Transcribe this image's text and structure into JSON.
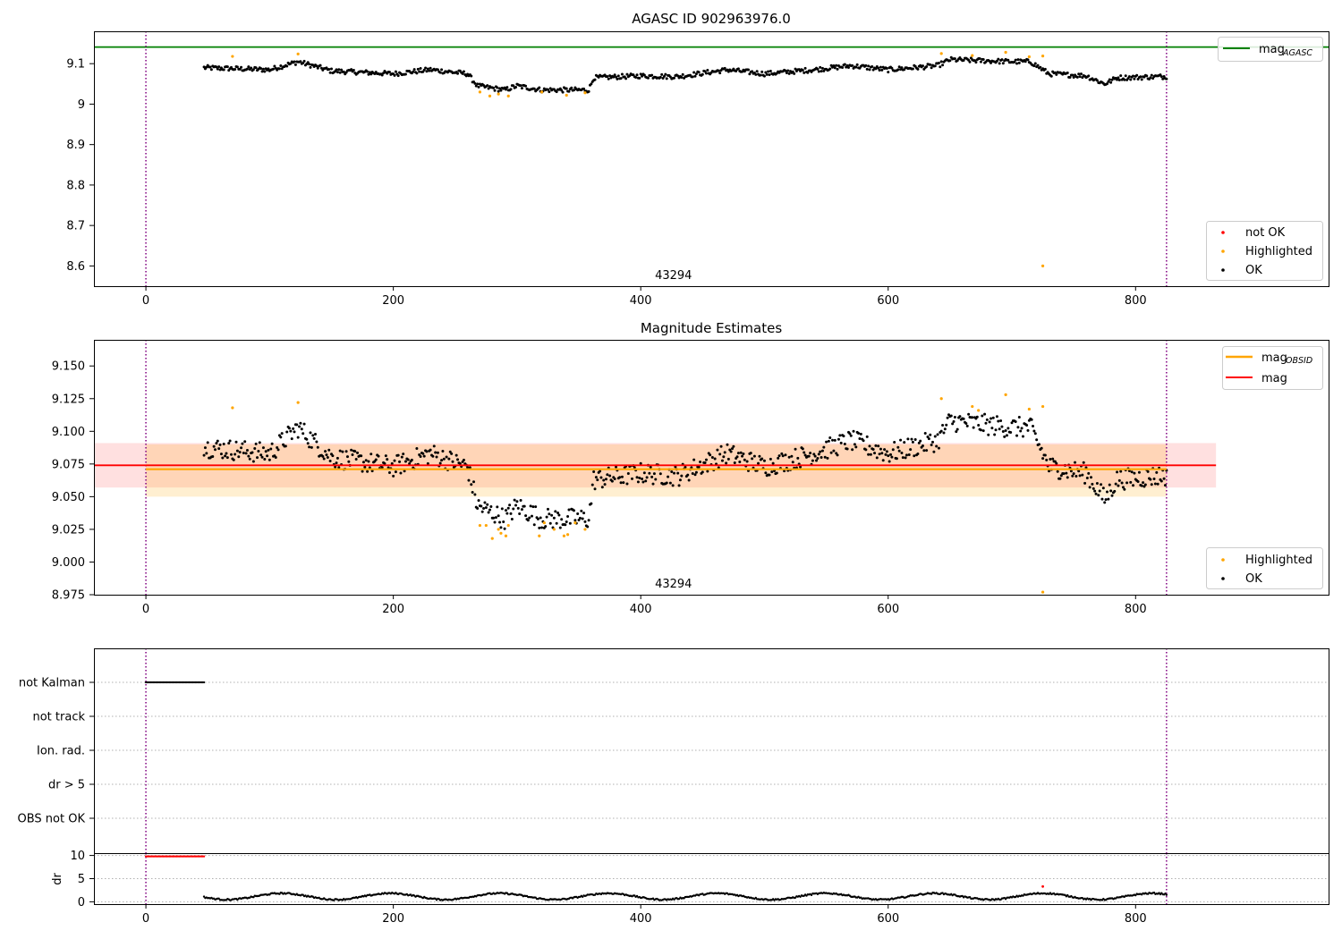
{
  "chart_data": [
    {
      "type": "scatter",
      "title": "AGASC ID 902963976.0",
      "xlim": [
        -42,
        956
      ],
      "ylim": [
        8.55,
        9.18
      ],
      "xticks": [
        0,
        200,
        400,
        600,
        800
      ],
      "yticks": [
        8.6,
        8.7,
        8.8,
        8.9,
        9.0,
        9.1
      ],
      "grid": false,
      "reference_line": {
        "label": "mag",
        "subscript": "AGASC",
        "y": 9.141,
        "color": "#008000"
      },
      "obsid_boundaries": [
        0,
        825
      ],
      "obsid_label": {
        "text": "43294",
        "x": 412
      },
      "series": [
        {
          "name": "not OK",
          "color": "#ff0000",
          "points": []
        },
        {
          "name": "Highlighted",
          "color": "#ffa500",
          "points": [
            [
              70,
              9.118
            ],
            [
              123,
              9.124
            ],
            [
              270,
              9.03
            ],
            [
              278,
              9.02
            ],
            [
              285,
              9.025
            ],
            [
              293,
              9.02
            ],
            [
              320,
              9.03
            ],
            [
              340,
              9.022
            ],
            [
              355,
              9.028
            ],
            [
              643,
              9.125
            ],
            [
              668,
              9.12
            ],
            [
              695,
              9.128
            ],
            [
              714,
              9.117
            ],
            [
              725,
              9.119
            ],
            [
              725,
              8.6
            ]
          ]
        },
        {
          "name": "OK",
          "color": "#000000",
          "generated_from": "trend",
          "x_range": [
            47,
            825
          ],
          "step": 1,
          "jitter": 0.006
        }
      ],
      "trend": [
        [
          47,
          9.09
        ],
        [
          100,
          9.085
        ],
        [
          123,
          9.105
        ],
        [
          150,
          9.082
        ],
        [
          200,
          9.075
        ],
        [
          230,
          9.085
        ],
        [
          260,
          9.075
        ],
        [
          268,
          9.045
        ],
        [
          290,
          9.035
        ],
        [
          300,
          9.045
        ],
        [
          320,
          9.035
        ],
        [
          358,
          9.035
        ],
        [
          362,
          9.065
        ],
        [
          400,
          9.07
        ],
        [
          430,
          9.068
        ],
        [
          470,
          9.085
        ],
        [
          500,
          9.075
        ],
        [
          540,
          9.085
        ],
        [
          570,
          9.095
        ],
        [
          600,
          9.085
        ],
        [
          640,
          9.095
        ],
        [
          650,
          9.11
        ],
        [
          700,
          9.105
        ],
        [
          715,
          9.105
        ],
        [
          730,
          9.075
        ],
        [
          760,
          9.07
        ],
        [
          775,
          9.05
        ],
        [
          785,
          9.065
        ],
        [
          820,
          9.068
        ]
      ],
      "legend": {
        "placement": "lower-right",
        "entries": [
          "not OK",
          "Highlighted",
          "OK"
        ]
      },
      "legend_top": {
        "placement": "upper-right",
        "entries": [
          "mag"
        ]
      }
    },
    {
      "type": "scatter",
      "title": "Magnitude Estimates",
      "xlim": [
        -42,
        956
      ],
      "ylim": [
        8.975,
        9.17
      ],
      "xticks": [
        0,
        200,
        400,
        600,
        800
      ],
      "yticks": [
        8.975,
        9.0,
        9.025,
        9.05,
        9.075,
        9.1,
        9.125,
        9.15
      ],
      "ytick_labels": [
        "8.975",
        "9.000",
        "9.025",
        "9.050",
        "9.075",
        "9.100",
        "9.125",
        "9.150"
      ],
      "grid": false,
      "lines": [
        {
          "label": "mag",
          "subscript": "OBSID",
          "y": 9.071,
          "color": "#ffa500",
          "band": [
            9.05,
            9.09
          ],
          "x_range": [
            0,
            825
          ]
        },
        {
          "label": "mag",
          "y": 9.074,
          "color": "#ff0000",
          "band": [
            9.057,
            9.091
          ],
          "x_range": [
            -42,
            865
          ]
        }
      ],
      "obsid_boundaries": [
        0,
        825
      ],
      "obsid_label": {
        "text": "43294",
        "x": 412
      },
      "series": [
        {
          "name": "Highlighted",
          "color": "#ffa500",
          "points": [
            [
              70,
              9.118
            ],
            [
              123,
              9.122
            ],
            [
              270,
              9.028
            ],
            [
              275,
              9.028
            ],
            [
              280,
              9.018
            ],
            [
              285,
              9.025
            ],
            [
              287,
              9.022
            ],
            [
              291,
              9.02
            ],
            [
              293,
              9.028
            ],
            [
              318,
              9.02
            ],
            [
              322,
              9.03
            ],
            [
              330,
              9.025
            ],
            [
              338,
              9.02
            ],
            [
              341,
              9.021
            ],
            [
              347,
              9.03
            ],
            [
              355,
              9.025
            ],
            [
              643,
              9.125
            ],
            [
              668,
              9.119
            ],
            [
              673,
              9.116
            ],
            [
              695,
              9.128
            ],
            [
              714,
              9.117
            ],
            [
              725,
              9.119
            ],
            [
              725,
              8.977
            ]
          ]
        },
        {
          "name": "OK",
          "color": "#000000",
          "generated_from": "trend",
          "x_range": [
            47,
            825
          ],
          "step": 1,
          "jitter": 0.008
        }
      ],
      "legend": {
        "placement": "lower-right",
        "entries": [
          "Highlighted",
          "OK"
        ]
      },
      "legend_top": {
        "placement": "upper-right",
        "entries": [
          "mag",
          "mag"
        ]
      }
    },
    {
      "type": "scatter",
      "title": "",
      "xlim": [
        -42,
        956
      ],
      "categories": [
        "not Kalman",
        "not track",
        "Ion. rad.",
        "dr > 5",
        "OBS not OK"
      ],
      "flag_series": [
        {
          "category": "not Kalman",
          "x_range": [
            0,
            47
          ],
          "color": "#000000"
        }
      ],
      "grid": "dotted horizontal",
      "obsid_boundaries": [
        0,
        825
      ]
    },
    {
      "type": "scatter",
      "title": "",
      "xlim": [
        -42,
        956
      ],
      "ylim": [
        -0.5,
        10.5
      ],
      "xticks": [
        0,
        200,
        400,
        600,
        800
      ],
      "yticks": [
        0,
        5,
        10
      ],
      "ylabel": "dr",
      "grid": "dotted horizontal",
      "obsid_boundaries": [
        0,
        825
      ],
      "series": [
        {
          "name": "clipped",
          "color": "#ff0000",
          "x_range": [
            0,
            47
          ],
          "y": 9.8
        },
        {
          "name": "dr",
          "color": "#000000",
          "x_range": [
            47,
            825
          ],
          "range": [
            0.3,
            2.0
          ]
        },
        {
          "name": "outlier",
          "color": "#ff0000",
          "points": [
            [
              725,
              3.3
            ]
          ]
        }
      ]
    }
  ]
}
